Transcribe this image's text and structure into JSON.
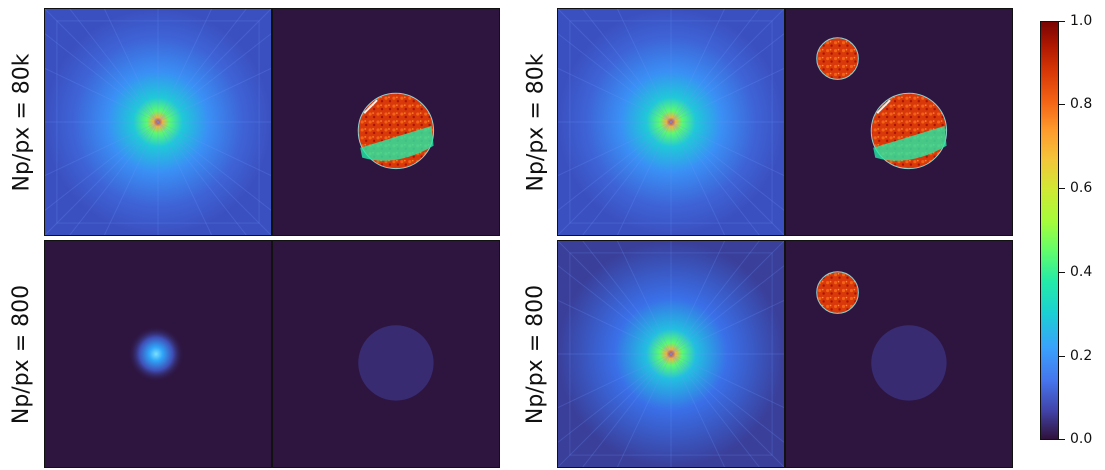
{
  "row_labels": [
    "Np/px = 80k",
    "Np/px = 800"
  ],
  "colorbar": {
    "ticks": [
      "1.0",
      "0.8",
      "0.6",
      "0.4",
      "0.2",
      "0.0"
    ],
    "colormap": "turbo"
  }
}
